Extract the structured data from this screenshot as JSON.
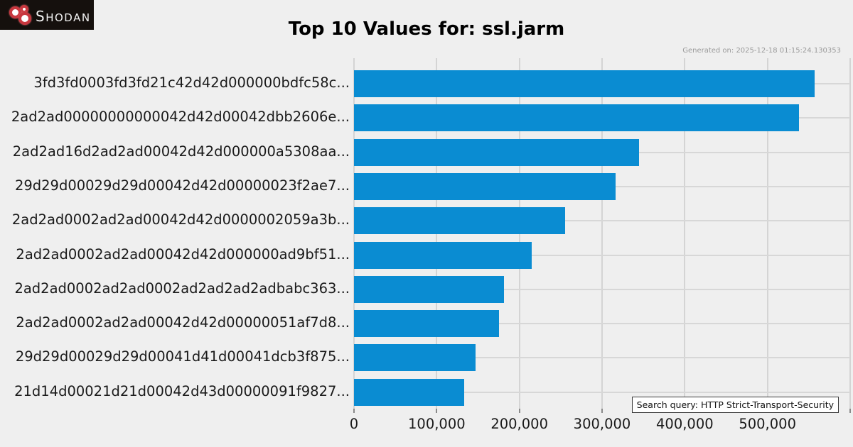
{
  "logo": {
    "text": "SHODAN"
  },
  "header": {
    "title": "Top 10 Values for: ssl.jarm",
    "generated": "Generated on: 2025-12-18 01:15:24.130353"
  },
  "chart_data": {
    "type": "bar",
    "orientation": "horizontal",
    "title": "Top 10 Values for: ssl.jarm",
    "categories": [
      "3fd3fd0003fd3fd21c42d42d000000bdfc58c...",
      "2ad2ad00000000000042d42d00042dbb2606e...",
      "2ad2ad16d2ad2ad00042d42d000000a5308aa...",
      "29d29d00029d29d00042d42d00000023f2ae7...",
      "2ad2ad0002ad2ad00042d42d0000002059a3b...",
      "2ad2ad0002ad2ad00042d42d000000ad9bf51...",
      "2ad2ad0002ad2ad0002ad2ad2ad2adbabc363...",
      "2ad2ad0002ad2ad00042d42d00000051af7d8...",
      "29d29d00029d29d00041d41d00041dcb3f875...",
      "21d14d00021d21d00042d43d00000091f9827..."
    ],
    "values": [
      557000,
      538000,
      345000,
      316000,
      255000,
      215000,
      181000,
      175000,
      147000,
      133000
    ],
    "x_tick_labels": [
      "0",
      "100,000",
      "200,000",
      "300,000",
      "400,000",
      "500,000"
    ],
    "xlim": [
      0,
      600000
    ],
    "xlabel": "",
    "ylabel": "",
    "grid": true,
    "legend": false,
    "bar_color": "#0a8cd2"
  },
  "footer": {
    "search_query": "Search query: HTTP Strict-Transport-Security"
  }
}
